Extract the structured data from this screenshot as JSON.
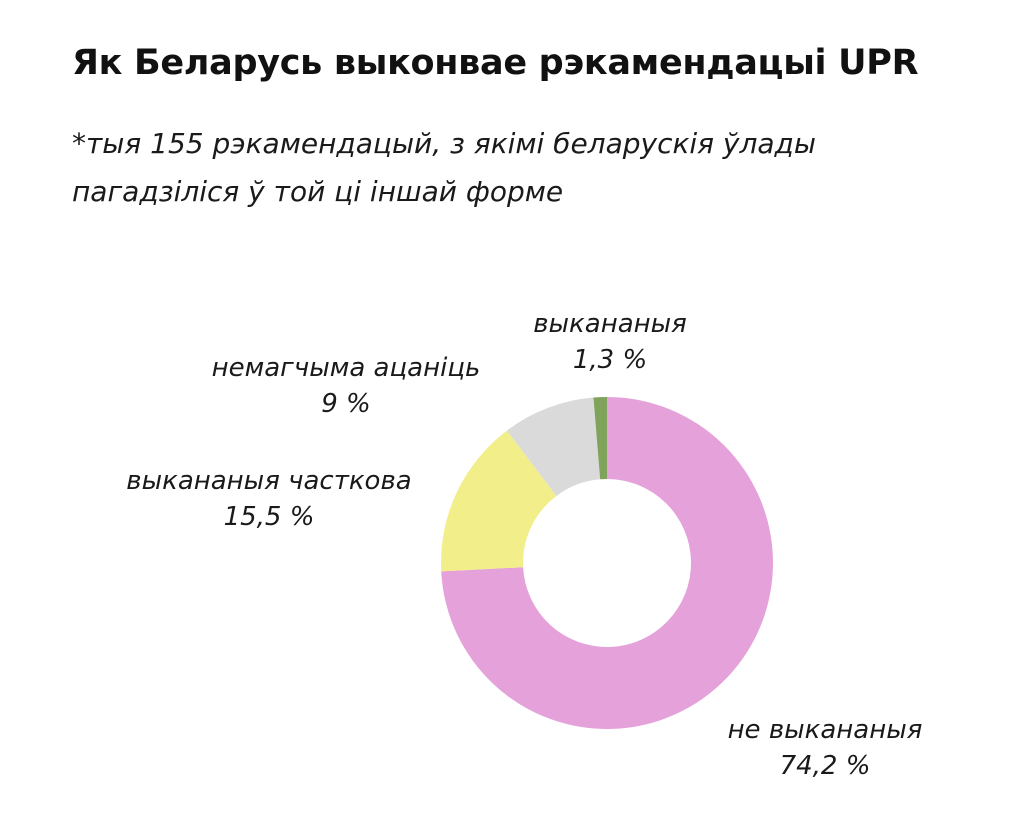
{
  "title": "Як Беларусь выконвае рэкамендацыі UPR",
  "subtitle_lines": [
    "*тыя 155 рэкамендацый, з якімі беларускія ўлады",
    "пагадзіліся ў той ці іншай форме"
  ],
  "chart_data": {
    "type": "pie",
    "variant": "donut",
    "title": "Як Беларусь выконвае рэкамендацыі UPR",
    "subtitle": "*тыя 155 рэкамендацый, з якімі беларускія ўлады пагадзіліся ў той ці іншай форме",
    "unit": "%",
    "categories": [
      "не выкананыя",
      "выкананыя часткова",
      "немагчыма ацаніць",
      "выкананыя"
    ],
    "values": [
      74.2,
      15.5,
      9,
      1.3
    ],
    "value_labels": [
      "74,2 %",
      "15,5 %",
      "9 %",
      "1,3 %"
    ],
    "colors": [
      "#E5A1D9",
      "#F2EE8A",
      "#DADADA",
      "#7FA35A"
    ],
    "legend": "none",
    "slice_order": "clockwise from top"
  }
}
